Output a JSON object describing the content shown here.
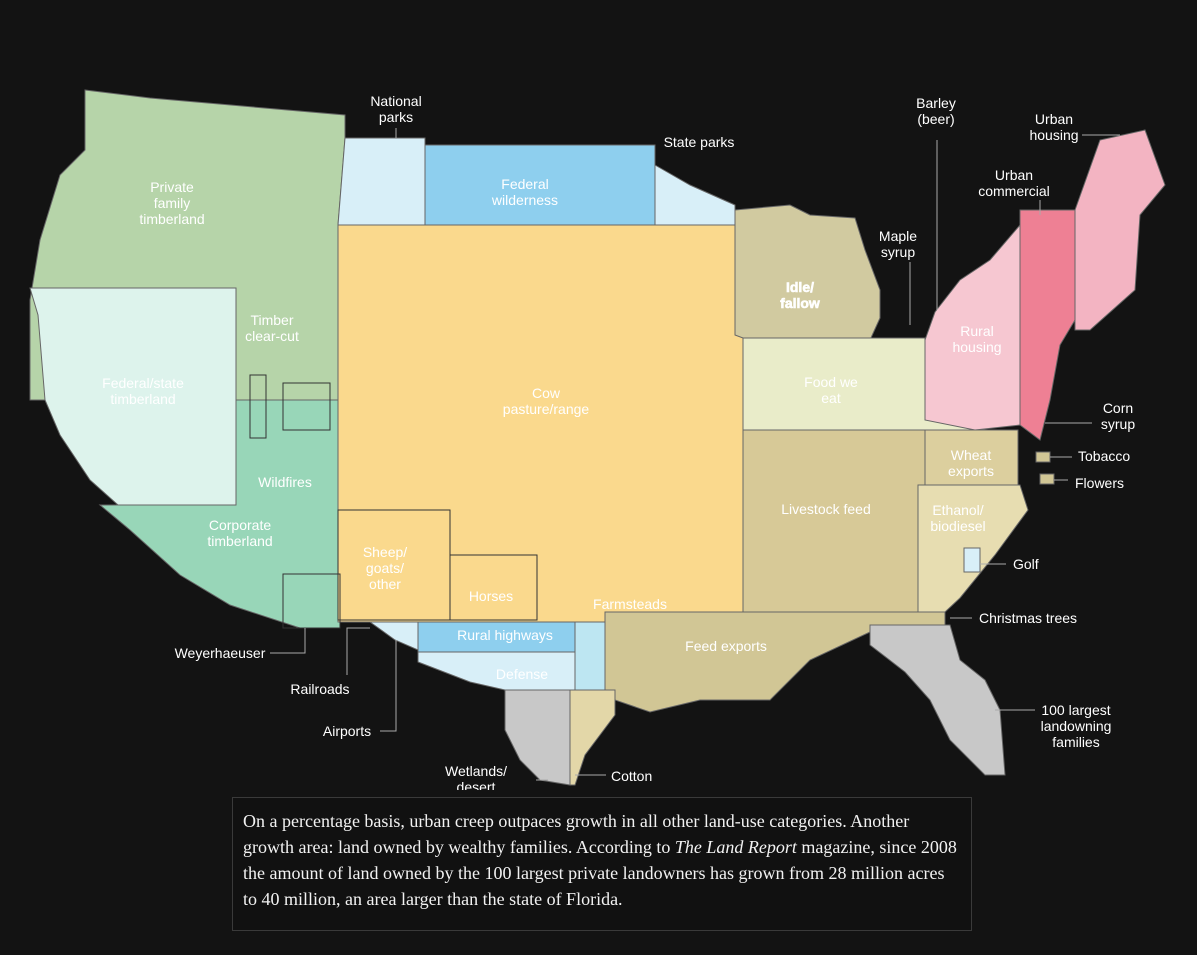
{
  "map": {
    "labels": [
      [
        "National",
        "parks"
      ],
      [
        "Federal",
        "wilderness"
      ],
      [
        "State parks"
      ],
      [
        "Private",
        "family",
        "timberland"
      ],
      [
        "Timber",
        "clear-cut"
      ],
      [
        "Federal/state",
        "timberland"
      ],
      [
        "Wildfires"
      ],
      [
        "Corporate",
        "timberland"
      ],
      [
        "Weyerhaeuser"
      ],
      [
        "Railroads"
      ],
      [
        "Airports"
      ],
      [
        "Wetlands/",
        "desert"
      ],
      [
        "Cotton"
      ],
      [
        "Cow",
        "pasture/range"
      ],
      [
        "Sheep/",
        "goats/",
        "other"
      ],
      [
        "Horses"
      ],
      [
        "Farmsteads"
      ],
      [
        "Rural highways"
      ],
      [
        "Defense"
      ],
      [
        "Feed exports"
      ],
      [
        "Livestock feed"
      ],
      [
        "Food we",
        "eat"
      ],
      [
        "Idle/",
        "fallow"
      ],
      [
        "Maple",
        "syrup"
      ],
      [
        "Barley",
        "(beer)"
      ],
      [
        "Urban",
        "housing"
      ],
      [
        "Urban",
        "commercial"
      ],
      [
        "Rural",
        "housing"
      ],
      [
        "Corn",
        "syrup"
      ],
      [
        "Wheat",
        "exports"
      ],
      [
        "Tobacco"
      ],
      [
        "Flowers"
      ],
      [
        "Ethanol/",
        "biodiesel"
      ],
      [
        "Golf"
      ],
      [
        "Christmas trees"
      ],
      [
        "100 largest",
        "landowning",
        "families"
      ]
    ]
  },
  "caption": {
    "segments": [
      "On a percentage basis, urban creep outpaces growth in all other land-use categories. Another growth area: land owned by wealthy families. According to ",
      "The Land Report",
      " magazine, since 2008 the amount of land owned by the 100 largest private landowners has grown from 28 million acres to 40 million, an area larger than the state of Florida."
    ]
  }
}
